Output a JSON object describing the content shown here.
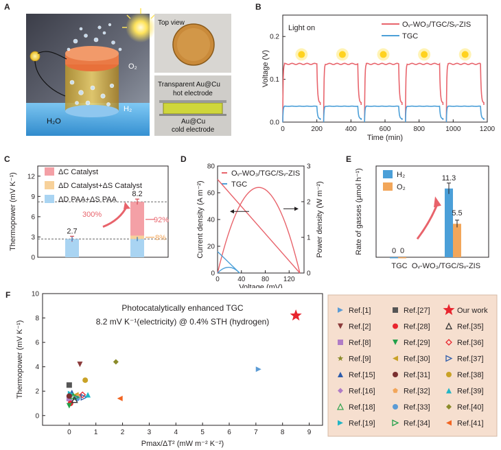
{
  "panels": {
    "A": "A",
    "B": "B",
    "C": "C",
    "D": "D",
    "E": "E",
    "F": "F"
  },
  "panel_a": {
    "labels": {
      "o2": "O₂",
      "h2": "H₂",
      "h2o": "H₂O"
    },
    "top_view": "Top view",
    "hot_electrode_line1": "Transparent Au@Cu",
    "hot_electrode_line2": "hot electrode",
    "cold_electrode_line1": "Au@Cu",
    "cold_electrode_line2": "cold electrode"
  },
  "colors": {
    "red": "#e8636b",
    "blue": "#4b9fd8",
    "orange": "#f2a65a",
    "pink_bar": "#f4a0a6",
    "light_blue_bar": "#a9d4f2",
    "light_orange_bar": "#f7d19a",
    "panel_f_bg": "#f6dfcf",
    "star": "#e8252e"
  },
  "chart_data": [
    {
      "panel": "B",
      "type": "line",
      "annotation": "Light on",
      "xlabel": "Time (min)",
      "ylabel": "Voltage (V)",
      "xlim": [
        0,
        1200
      ],
      "ylim": [
        0,
        0.25
      ],
      "xticks": [
        0,
        200,
        400,
        600,
        800,
        1000,
        1200
      ],
      "yticks": [
        0.0,
        0.1,
        0.2
      ],
      "cycles_start": [
        0,
        240,
        480,
        720,
        960
      ],
      "cycle_length": 220,
      "series": [
        {
          "name": "Oᵥ-WO₃/TGC/Sᵥ-ZIS",
          "plateau": 0.136,
          "color": "#e8636b"
        },
        {
          "name": "TGC",
          "plateau": 0.037,
          "color": "#4b9fd8"
        }
      ]
    },
    {
      "panel": "C",
      "type": "bar",
      "ylabel": "Thermopower (mV K⁻¹)",
      "ylim": [
        0,
        13.5
      ],
      "yticks": [
        0,
        3,
        6,
        9,
        12
      ],
      "legend": [
        {
          "name": "ΔC_Catalyst",
          "color": "#f4a0a6"
        },
        {
          "name": "ΔD_Catalyst+ΔS_Catalyst",
          "color": "#f7d19a"
        },
        {
          "name": "ΔD_PAA+ΔS_PAA",
          "color": "#a9d4f2"
        }
      ],
      "bars": [
        {
          "total": 2.7,
          "label": "2.7",
          "segments": [
            {
              "color": "#a9d4f2",
              "value": 2.7
            }
          ]
        },
        {
          "total": 8.2,
          "label": "8.2",
          "segments": [
            {
              "color": "#a9d4f2",
              "value": 2.7
            },
            {
              "color": "#f7d19a",
              "value": 0.5
            },
            {
              "color": "#f4a0a6",
              "value": 5.0
            }
          ]
        }
      ],
      "dashed_lines": [
        2.7,
        8.2
      ],
      "annotations": {
        "increase": "300%",
        "pct_red": "92%",
        "pct_orange": "8%"
      }
    },
    {
      "panel": "D",
      "type": "line",
      "xlabel": "Voltage (mV)",
      "ylabel_left": "Current density (A m⁻²)",
      "ylabel_right": "Power density (W m⁻²)",
      "xlim": [
        0,
        145
      ],
      "xticks": [
        0,
        40,
        80,
        120
      ],
      "ylim_left": [
        0,
        80
      ],
      "yticks_left": [
        0,
        20,
        40,
        60,
        80
      ],
      "ylim_right": [
        0,
        3
      ],
      "yticks_right": [
        0,
        1,
        2,
        3
      ],
      "series": [
        {
          "name": "Oᵥ-WO₃/TGC/Sᵥ-ZIS",
          "color": "#e8636b",
          "jsc": 70,
          "voc": 138,
          "pmax": 2.4
        },
        {
          "name": "TGC",
          "color": "#4b9fd8",
          "jsc": 16,
          "voc": 37,
          "pmax": 0.16
        }
      ]
    },
    {
      "panel": "E",
      "type": "bar",
      "ylabel": "Rate of gasses (μmol h⁻¹)",
      "ylim": [
        0,
        15
      ],
      "categories": [
        "TGC",
        "Oᵥ-WO₃/TGC/Sᵥ-ZIS"
      ],
      "series": [
        {
          "name": "H₂",
          "color": "#4b9fd8",
          "values": [
            0,
            11.3
          ],
          "labels": [
            "0",
            "11.3"
          ]
        },
        {
          "name": "O₂",
          "color": "#f2a65a",
          "values": [
            0,
            5.5
          ],
          "labels": [
            "0",
            "5.5"
          ]
        }
      ]
    },
    {
      "panel": "F",
      "type": "scatter",
      "xlabel": "Pmax/ΔT² (mW m⁻² K⁻²)",
      "ylabel": "Thermopower  (mV K⁻¹)",
      "xlim": [
        -1,
        9.5
      ],
      "xticks": [
        0,
        1,
        2,
        3,
        4,
        5,
        6,
        7,
        8,
        9
      ],
      "ylim": [
        -0.8,
        10
      ],
      "yticks": [
        0,
        2,
        4,
        6,
        8,
        10
      ],
      "annotation_line1": "Photocatalytically enhanced TGC",
      "annotation_line2": "8.2 mV K⁻¹(electricity)  @ 0.4% STH (hydrogen)",
      "points": [
        {
          "label": "Ref.[1]",
          "x": 7.1,
          "y": 3.8,
          "shape": "tri-right",
          "color": "#5b9bd5"
        },
        {
          "label": "Ref.[2]",
          "x": 0.4,
          "y": 4.2,
          "shape": "tri-down",
          "color": "#8b3a3a"
        },
        {
          "label": "Ref.[8]",
          "x": 0.0,
          "y": 1.4,
          "shape": "square",
          "color": "#b07cc6"
        },
        {
          "label": "Ref.[9]",
          "x": 0.05,
          "y": 1.1,
          "shape": "star",
          "color": "#8b8b2a"
        },
        {
          "label": "Ref.[15]",
          "x": 0.1,
          "y": 1.9,
          "shape": "tri-up",
          "color": "#2e5caa"
        },
        {
          "label": "Ref.[16]",
          "x": 0.05,
          "y": 1.2,
          "shape": "diamond",
          "color": "#b07cc6"
        },
        {
          "label": "Ref.[18]",
          "x": 0.15,
          "y": 1.6,
          "shape": "tri-up-open",
          "color": "#3aa655"
        },
        {
          "label": "Ref.[19]",
          "x": 0.05,
          "y": 1.8,
          "shape": "tri-right",
          "color": "#22b5c5"
        },
        {
          "label": "Ref.[27]",
          "x": 0.0,
          "y": 2.5,
          "shape": "square",
          "color": "#555555"
        },
        {
          "label": "Ref.[28]",
          "x": 0.05,
          "y": 1.0,
          "shape": "circle",
          "color": "#e8252e"
        },
        {
          "label": "Ref.[29]",
          "x": 0.0,
          "y": 0.8,
          "shape": "tri-down",
          "color": "#22a04a"
        },
        {
          "label": "Ref.[30]",
          "x": 0.25,
          "y": 1.7,
          "shape": "tri-left",
          "color": "#c9a227"
        },
        {
          "label": "Ref.[31]",
          "x": 0.0,
          "y": 1.6,
          "shape": "circle",
          "color": "#7a3030"
        },
        {
          "label": "Ref.[32]",
          "x": 0.35,
          "y": 1.6,
          "shape": "pentagon",
          "color": "#f2a65a"
        },
        {
          "label": "Ref.[33]",
          "x": 0.3,
          "y": 1.4,
          "shape": "circle",
          "color": "#5b9bd5"
        },
        {
          "label": "Ref.[34]",
          "x": 0.25,
          "y": 1.5,
          "shape": "tri-right-open",
          "color": "#22a04a"
        },
        {
          "label": "Ref.[35]",
          "x": 0.2,
          "y": 1.3,
          "shape": "tri-up-open",
          "color": "#333333"
        },
        {
          "label": "Ref.[36]",
          "x": 0.5,
          "y": 1.7,
          "shape": "diamond-open",
          "color": "#e8252e"
        },
        {
          "label": "Ref.[37]",
          "x": 0.55,
          "y": 1.5,
          "shape": "tri-right-open",
          "color": "#2e5caa"
        },
        {
          "label": "Ref.[38]",
          "x": 0.6,
          "y": 2.9,
          "shape": "circle",
          "color": "#c9a227"
        },
        {
          "label": "Ref.[39]",
          "x": 0.7,
          "y": 1.7,
          "shape": "tri-up",
          "color": "#22b5c5"
        },
        {
          "label": "Ref.[40]",
          "x": 1.75,
          "y": 4.4,
          "shape": "diamond",
          "color": "#8b8b2a"
        },
        {
          "label": "Ref.[41]",
          "x": 1.9,
          "y": 1.4,
          "shape": "tri-left",
          "color": "#f26522"
        },
        {
          "label": "Our work",
          "x": 8.5,
          "y": 8.2,
          "shape": "big-star",
          "color": "#e8252e"
        }
      ]
    }
  ]
}
